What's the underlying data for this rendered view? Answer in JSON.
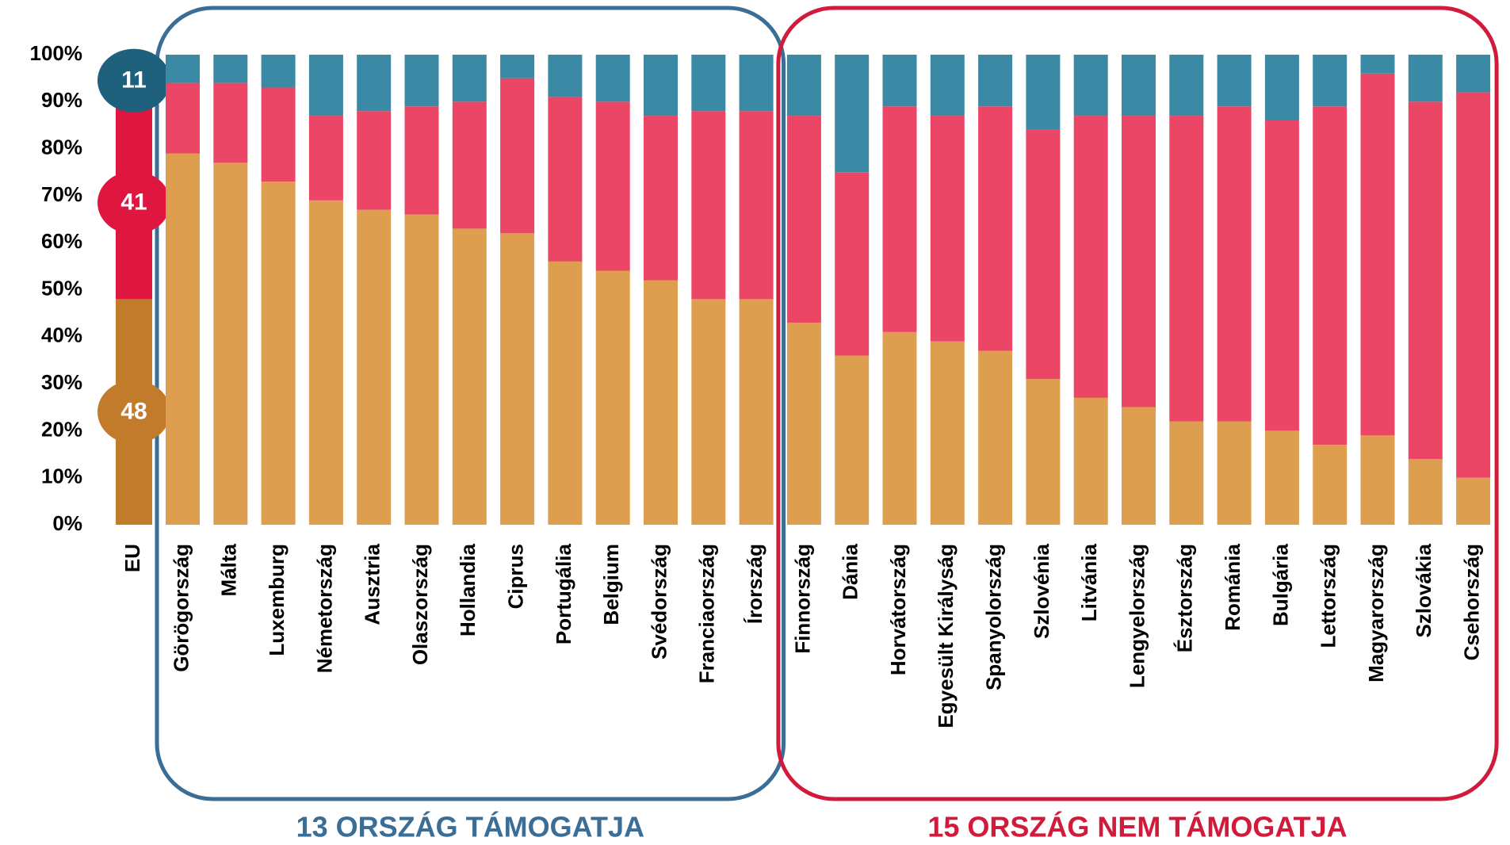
{
  "chart_data": {
    "type": "stacked_bar",
    "categories": [
      "EU",
      "Görögország",
      "Málta",
      "Luxemburg",
      "Németország",
      "Ausztria",
      "Olaszország",
      "Hollandia",
      "Ciprus",
      "Portugália",
      "Belgium",
      "Svédország",
      "Franciaország",
      "Írország",
      "Finnország",
      "Dánia",
      "Horvátország",
      "Egyesült Királyság",
      "Spanyolország",
      "Szlovénia",
      "Litvánia",
      "Lengyelország",
      "Észtország",
      "Románia",
      "Bulgária",
      "Lettország",
      "Magyarország",
      "Szlovákia",
      "Csehország"
    ],
    "series": [
      {
        "color": "#dd9f4f",
        "highlight_color": "#c27a2b",
        "values": [
          48,
          79,
          77,
          73,
          69,
          67,
          66,
          63,
          62,
          56,
          54,
          52,
          48,
          48,
          43,
          36,
          41,
          39,
          37,
          31,
          27,
          25,
          22,
          22,
          20,
          17,
          19,
          14,
          10
        ]
      },
      {
        "color": "#ec4666",
        "highlight_color": "#df163f",
        "values": [
          41,
          15,
          17,
          20,
          18,
          21,
          23,
          27,
          33,
          35,
          36,
          35,
          40,
          40,
          44,
          39,
          48,
          48,
          52,
          53,
          60,
          62,
          65,
          67,
          66,
          72,
          77,
          76,
          82
        ]
      },
      {
        "color": "#3a8aa6",
        "highlight_color": "#1f617c",
        "values": [
          11,
          6,
          6,
          7,
          13,
          12,
          11,
          10,
          5,
          9,
          10,
          13,
          12,
          12,
          13,
          25,
          11,
          13,
          11,
          16,
          13,
          13,
          13,
          11,
          14,
          11,
          4,
          10,
          8
        ]
      }
    ],
    "ylim": [
      0,
      100
    ],
    "yticks": [
      {
        "value": 0,
        "label": "0%"
      },
      {
        "value": 10,
        "label": "10%"
      },
      {
        "value": 20,
        "label": "20%"
      },
      {
        "value": 30,
        "label": "30%"
      },
      {
        "value": 40,
        "label": "40%"
      },
      {
        "value": 50,
        "label": "50%"
      },
      {
        "value": 60,
        "label": "60%"
      },
      {
        "value": 70,
        "label": "70%"
      },
      {
        "value": 80,
        "label": "80%"
      },
      {
        "value": 90,
        "label": "90%"
      },
      {
        "value": 100,
        "label": "100%"
      }
    ],
    "annotations": [
      {
        "text": "13 ORSZÁG TÁMOGATJA",
        "color": "#3b6e96"
      },
      {
        "text": "15 ORSZÁG NEM TÁMOGATJA",
        "color": "#d21a3b"
      }
    ]
  }
}
